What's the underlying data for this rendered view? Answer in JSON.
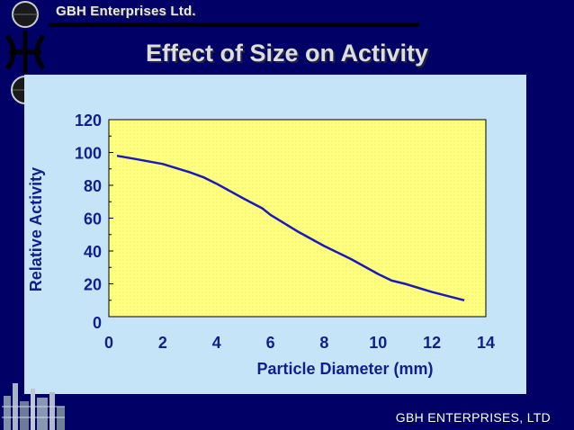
{
  "header": {
    "company": "GBH Enterprises Ltd.",
    "title": "Effect of Size on Activity"
  },
  "footer": {
    "company": "GBH ENTERPRISES, LTD"
  },
  "colors": {
    "background": "#000066",
    "panel": "#c6e4f8",
    "plot_area": "#ffff80",
    "line": "#1a1ab8",
    "axis_text": "#0f1f8c"
  },
  "chart_data": {
    "type": "line",
    "title": "Effect of Size on Activity",
    "xlabel": "Particle Diameter (mm)",
    "ylabel": "Relative Activity",
    "xlim": [
      0,
      14
    ],
    "ylim": [
      0,
      120
    ],
    "x_ticks": [
      0,
      2,
      4,
      6,
      8,
      10,
      12,
      14
    ],
    "y_ticks": [
      0,
      20,
      40,
      60,
      80,
      100,
      120
    ],
    "grid": false,
    "series": [
      {
        "name": "Relative Activity",
        "x": [
          0.3,
          1,
          2,
          3,
          3.5,
          4,
          5,
          5.7,
          6,
          7,
          8,
          9,
          10,
          10.5,
          11,
          12,
          13.2
        ],
        "y": [
          98,
          96,
          93,
          88,
          85,
          81,
          72,
          66,
          62,
          52,
          43,
          35,
          26,
          22,
          20,
          15,
          10
        ]
      }
    ]
  }
}
